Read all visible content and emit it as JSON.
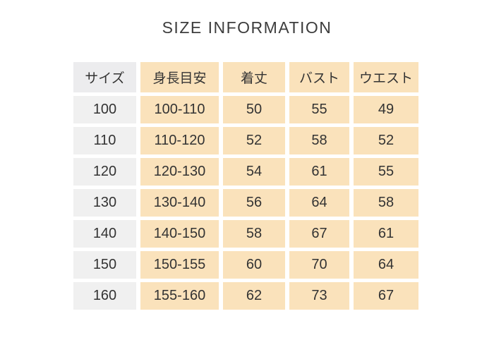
{
  "title": "SIZE INFORMATION",
  "chart_data": {
    "type": "table",
    "title": "SIZE INFORMATION",
    "columns": [
      "サイズ",
      "身長目安",
      "着丈",
      "バスト",
      "ウエスト"
    ],
    "rows": [
      [
        "100",
        "100-110",
        "50",
        "55",
        "49"
      ],
      [
        "110",
        "110-120",
        "52",
        "58",
        "52"
      ],
      [
        "120",
        "120-130",
        "54",
        "61",
        "55"
      ],
      [
        "130",
        "130-140",
        "56",
        "64",
        "58"
      ],
      [
        "140",
        "140-150",
        "58",
        "67",
        "61"
      ],
      [
        "150",
        "150-155",
        "60",
        "70",
        "64"
      ],
      [
        "160",
        "155-160",
        "62",
        "73",
        "67"
      ]
    ],
    "layout": {
      "size_column_highlight": "gray",
      "data_cells_highlight": "peach",
      "grid_gaps": "white"
    }
  },
  "colors": {
    "page_bg": "#ffffff",
    "title_text": "#3d3d3d",
    "cell_text": "#333333",
    "peach_cell_bg": "#fae2bb",
    "size_column_bg": "#f0f0f0",
    "size_header_bg": "#ececee"
  }
}
